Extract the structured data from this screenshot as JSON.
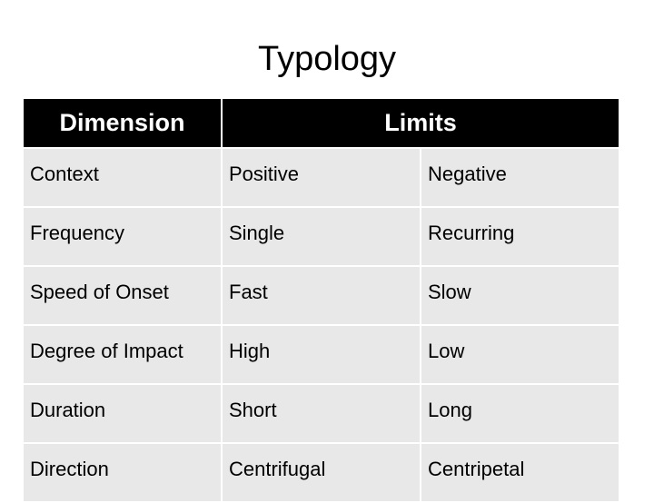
{
  "title": "Typology",
  "table": {
    "header": [
      "Dimension",
      "Limits"
    ],
    "rows": [
      [
        "Context",
        "Positive",
        "Negative"
      ],
      [
        "Frequency",
        "Single",
        "Recurring"
      ],
      [
        "Speed of Onset",
        "Fast",
        "Slow"
      ],
      [
        "Degree of Impact",
        "High",
        "Low"
      ],
      [
        "Duration",
        "Short",
        "Long"
      ],
      [
        "Direction",
        "Centrifugal",
        "Centripetal"
      ]
    ]
  }
}
